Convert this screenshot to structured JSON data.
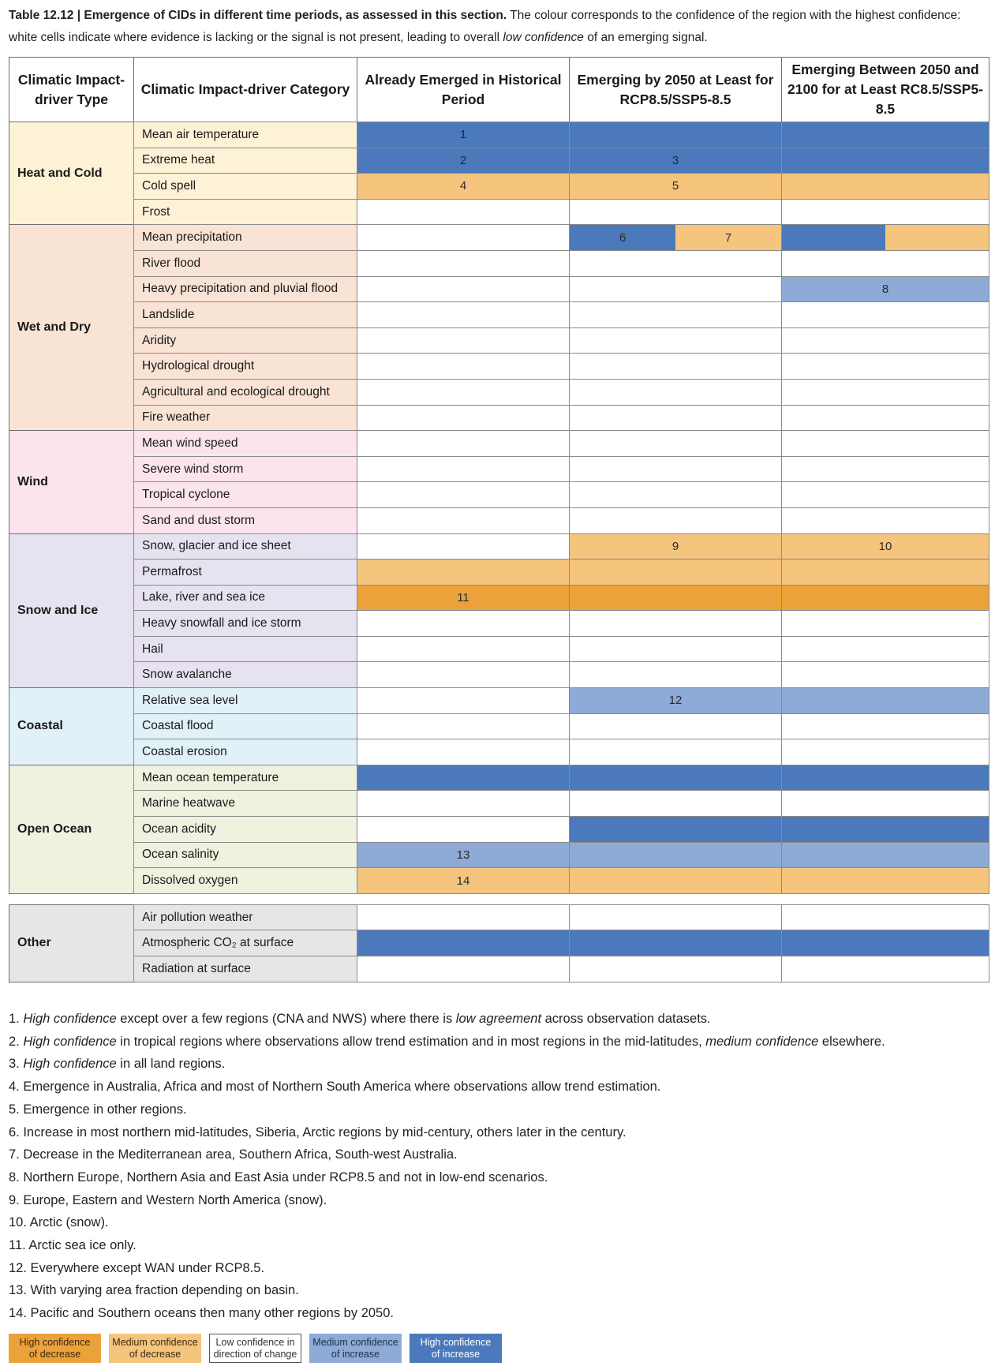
{
  "caption": {
    "label": "Table 12.12 | Emergence of CIDs in different time periods, as assessed in this section.",
    "text_before_italic": " The colour corresponds to the confidence of the region with the highest confidence: white cells indicate where evidence is lacking or the signal is not present, leading to overall ",
    "italic": "low confidence",
    "text_after_italic": " of an emerging signal."
  },
  "colors": {
    "high_decrease": "#eba23b",
    "medium_decrease": "#f5c47d",
    "low": "#ffffff",
    "medium_increase": "#8eaad6",
    "high_increase": "#4c79bb"
  },
  "headers": [
    "Climatic Impact-driver Type",
    "Climatic Impact-driver Category",
    "Already Emerged in Historical Period",
    "Emerging by 2050 at Least for RCP8.5/SSP5-8.5",
    "Emerging Between 2050 and 2100 for at Least RC8.5/SSP5-8.5"
  ],
  "groups": [
    {
      "type": "Heat and Cold",
      "bg": "#fdf1d6",
      "rows": [
        {
          "category": "Mean air temperature",
          "cells": [
            [
              [
                "high_increase",
                "1"
              ]
            ],
            [
              [
                "high_increase",
                ""
              ]
            ],
            [
              [
                "high_increase",
                ""
              ]
            ]
          ]
        },
        {
          "category": "Extreme heat",
          "cells": [
            [
              [
                "high_increase",
                "2"
              ]
            ],
            [
              [
                "high_increase",
                "3"
              ]
            ],
            [
              [
                "high_increase",
                ""
              ]
            ]
          ]
        },
        {
          "category": "Cold spell",
          "cells": [
            [
              [
                "medium_decrease",
                "4"
              ]
            ],
            [
              [
                "medium_decrease",
                "5"
              ]
            ],
            [
              [
                "medium_decrease",
                ""
              ]
            ]
          ]
        },
        {
          "category": "Frost",
          "cells": [
            [
              [
                "low",
                ""
              ]
            ],
            [
              [
                "low",
                ""
              ]
            ],
            [
              [
                "low",
                ""
              ]
            ]
          ]
        }
      ]
    },
    {
      "type": "Wet and Dry",
      "bg": "#f9e3d4",
      "rows": [
        {
          "category": "Mean precipitation",
          "cells": [
            [
              [
                "low",
                ""
              ]
            ],
            [
              [
                "high_increase",
                "6"
              ],
              [
                "medium_decrease",
                "7"
              ]
            ],
            [
              [
                "high_increase",
                ""
              ],
              [
                "medium_decrease",
                ""
              ]
            ]
          ]
        },
        {
          "category": "River flood",
          "cells": [
            [
              [
                "low",
                ""
              ]
            ],
            [
              [
                "low",
                ""
              ]
            ],
            [
              [
                "low",
                ""
              ]
            ]
          ]
        },
        {
          "category": "Heavy precipitation and pluvial flood",
          "cells": [
            [
              [
                "low",
                ""
              ]
            ],
            [
              [
                "low",
                ""
              ]
            ],
            [
              [
                "medium_increase",
                "8"
              ]
            ]
          ]
        },
        {
          "category": "Landslide",
          "cells": [
            [
              [
                "low",
                ""
              ]
            ],
            [
              [
                "low",
                ""
              ]
            ],
            [
              [
                "low",
                ""
              ]
            ]
          ]
        },
        {
          "category": "Aridity",
          "cells": [
            [
              [
                "low",
                ""
              ]
            ],
            [
              [
                "low",
                ""
              ]
            ],
            [
              [
                "low",
                ""
              ]
            ]
          ]
        },
        {
          "category": "Hydrological drought",
          "cells": [
            [
              [
                "low",
                ""
              ]
            ],
            [
              [
                "low",
                ""
              ]
            ],
            [
              [
                "low",
                ""
              ]
            ]
          ]
        },
        {
          "category": "Agricultural and ecological drought",
          "cells": [
            [
              [
                "low",
                ""
              ]
            ],
            [
              [
                "low",
                ""
              ]
            ],
            [
              [
                "low",
                ""
              ]
            ]
          ]
        },
        {
          "category": "Fire weather",
          "cells": [
            [
              [
                "low",
                ""
              ]
            ],
            [
              [
                "low",
                ""
              ]
            ],
            [
              [
                "low",
                ""
              ]
            ]
          ]
        }
      ]
    },
    {
      "type": "Wind",
      "bg": "#fbe4ec",
      "rows": [
        {
          "category": "Mean wind speed",
          "cells": [
            [
              [
                "low",
                ""
              ]
            ],
            [
              [
                "low",
                ""
              ]
            ],
            [
              [
                "low",
                ""
              ]
            ]
          ]
        },
        {
          "category": "Severe wind storm",
          "cells": [
            [
              [
                "low",
                ""
              ]
            ],
            [
              [
                "low",
                ""
              ]
            ],
            [
              [
                "low",
                ""
              ]
            ]
          ]
        },
        {
          "category": "Tropical cyclone",
          "cells": [
            [
              [
                "low",
                ""
              ]
            ],
            [
              [
                "low",
                ""
              ]
            ],
            [
              [
                "low",
                ""
              ]
            ]
          ]
        },
        {
          "category": "Sand and dust storm",
          "cells": [
            [
              [
                "low",
                ""
              ]
            ],
            [
              [
                "low",
                ""
              ]
            ],
            [
              [
                "low",
                ""
              ]
            ]
          ]
        }
      ]
    },
    {
      "type": "Snow and Ice",
      "bg": "#e7e2ef",
      "rows": [
        {
          "category": "Snow, glacier and ice sheet",
          "cells": [
            [
              [
                "low",
                ""
              ]
            ],
            [
              [
                "medium_decrease",
                "9"
              ]
            ],
            [
              [
                "medium_decrease",
                "10"
              ]
            ]
          ]
        },
        {
          "category": "Permafrost",
          "cells": [
            [
              [
                "medium_decrease",
                ""
              ]
            ],
            [
              [
                "medium_decrease",
                ""
              ]
            ],
            [
              [
                "medium_decrease",
                ""
              ]
            ]
          ]
        },
        {
          "category": "Lake, river and sea ice",
          "cells": [
            [
              [
                "high_decrease",
                "11"
              ]
            ],
            [
              [
                "high_decrease",
                ""
              ]
            ],
            [
              [
                "high_decrease",
                ""
              ]
            ]
          ]
        },
        {
          "category": "Heavy snowfall and ice storm",
          "cells": [
            [
              [
                "low",
                ""
              ]
            ],
            [
              [
                "low",
                ""
              ]
            ],
            [
              [
                "low",
                ""
              ]
            ]
          ]
        },
        {
          "category": "Hail",
          "cells": [
            [
              [
                "low",
                ""
              ]
            ],
            [
              [
                "low",
                ""
              ]
            ],
            [
              [
                "low",
                ""
              ]
            ]
          ]
        },
        {
          "category": "Snow avalanche",
          "cells": [
            [
              [
                "low",
                ""
              ]
            ],
            [
              [
                "low",
                ""
              ]
            ],
            [
              [
                "low",
                ""
              ]
            ]
          ]
        }
      ]
    },
    {
      "type": "Coastal",
      "bg": "#e1f1f8",
      "rows": [
        {
          "category": "Relative sea level",
          "cells": [
            [
              [
                "low",
                ""
              ]
            ],
            [
              [
                "medium_increase",
                "12"
              ]
            ],
            [
              [
                "medium_increase",
                ""
              ]
            ]
          ]
        },
        {
          "category": "Coastal flood",
          "cells": [
            [
              [
                "low",
                ""
              ]
            ],
            [
              [
                "low",
                ""
              ]
            ],
            [
              [
                "low",
                ""
              ]
            ]
          ]
        },
        {
          "category": "Coastal erosion",
          "cells": [
            [
              [
                "low",
                ""
              ]
            ],
            [
              [
                "low",
                ""
              ]
            ],
            [
              [
                "low",
                ""
              ]
            ]
          ]
        }
      ]
    },
    {
      "type": "Open Ocean",
      "bg": "#eef3df",
      "rows": [
        {
          "category": "Mean ocean temperature",
          "cells": [
            [
              [
                "high_increase",
                ""
              ]
            ],
            [
              [
                "high_increase",
                ""
              ]
            ],
            [
              [
                "high_increase",
                ""
              ]
            ]
          ]
        },
        {
          "category": "Marine heatwave",
          "cells": [
            [
              [
                "low",
                ""
              ]
            ],
            [
              [
                "low",
                ""
              ]
            ],
            [
              [
                "low",
                ""
              ]
            ]
          ]
        },
        {
          "category": "Ocean acidity",
          "cells": [
            [
              [
                "low",
                ""
              ]
            ],
            [
              [
                "high_increase",
                ""
              ]
            ],
            [
              [
                "high_increase",
                ""
              ]
            ]
          ]
        },
        {
          "category": "Ocean salinity",
          "cells": [
            [
              [
                "medium_increase",
                "13"
              ]
            ],
            [
              [
                "medium_increase",
                ""
              ]
            ],
            [
              [
                "medium_increase",
                ""
              ]
            ]
          ]
        },
        {
          "category": "Dissolved oxygen",
          "cells": [
            [
              [
                "medium_decrease",
                "14"
              ]
            ],
            [
              [
                "medium_decrease",
                ""
              ]
            ],
            [
              [
                "medium_decrease",
                ""
              ]
            ]
          ]
        }
      ]
    },
    {
      "type": "Other",
      "bg": "#e6e6e6",
      "gap_before": true,
      "rows": [
        {
          "category": "Air pollution weather",
          "cells": [
            [
              [
                "low",
                ""
              ]
            ],
            [
              [
                "low",
                ""
              ]
            ],
            [
              [
                "low",
                ""
              ]
            ]
          ]
        },
        {
          "category": "Atmospheric CO₂ at surface",
          "cells": [
            [
              [
                "high_increase",
                ""
              ]
            ],
            [
              [
                "high_increase",
                ""
              ]
            ],
            [
              [
                "high_increase",
                ""
              ]
            ]
          ]
        },
        {
          "category": "Radiation at surface",
          "cells": [
            [
              [
                "low",
                ""
              ]
            ],
            [
              [
                "low",
                ""
              ]
            ],
            [
              [
                "low",
                ""
              ]
            ]
          ]
        }
      ]
    }
  ],
  "footnotes": [
    [
      [
        "t",
        "1. "
      ],
      [
        "i",
        "High confidence"
      ],
      [
        "t",
        " except over a few regions (CNA and NWS) where there is "
      ],
      [
        "i",
        "low agreement"
      ],
      [
        "t",
        " across observation datasets."
      ]
    ],
    [
      [
        "t",
        "2. "
      ],
      [
        "i",
        "High confidence"
      ],
      [
        "t",
        " in tropical regions where observations allow trend estimation and in most regions in the mid-latitudes, "
      ],
      [
        "i",
        "medium confidence"
      ],
      [
        "t",
        " elsewhere."
      ]
    ],
    [
      [
        "t",
        "3. "
      ],
      [
        "i",
        "High confidence"
      ],
      [
        "t",
        " in all land regions."
      ]
    ],
    [
      [
        "t",
        "4. Emergence in Australia, Africa and most of Northern South America where observations allow trend estimation."
      ]
    ],
    [
      [
        "t",
        "5. Emergence in other regions."
      ]
    ],
    [
      [
        "t",
        "6. Increase in most northern mid-latitudes, Siberia, Arctic regions by mid-century, others later in the century."
      ]
    ],
    [
      [
        "t",
        "7. Decrease in the Mediterranean area, Southern Africa, South-west Australia."
      ]
    ],
    [
      [
        "t",
        "8. Northern Europe, Northern Asia and East Asia under RCP8.5 and not in low-end scenarios."
      ]
    ],
    [
      [
        "t",
        "9. Europe, Eastern and Western North America (snow)."
      ]
    ],
    [
      [
        "t",
        "10. Arctic (snow)."
      ]
    ],
    [
      [
        "t",
        "11. Arctic sea ice only."
      ]
    ],
    [
      [
        "t",
        "12. Everywhere except WAN under RCP8.5."
      ]
    ],
    [
      [
        "t",
        "13. With varying area fraction depending on basin."
      ]
    ],
    [
      [
        "t",
        "14. Pacific and Southern oceans then many other regions by 2050."
      ]
    ]
  ],
  "legend": [
    {
      "key": "high_decrease",
      "line1": "High confidence",
      "line2": "of decrease",
      "text_color": "#3a2a10"
    },
    {
      "key": "medium_decrease",
      "line1": "Medium confidence",
      "line2": "of decrease",
      "text_color": "#3a2a10"
    },
    {
      "key": "low",
      "line1": "Low confidence in",
      "line2": "direction of change",
      "text_color": "#333333"
    },
    {
      "key": "medium_increase",
      "line1": "Medium confidence",
      "line2": "of increase",
      "text_color": "#1f2f4a"
    },
    {
      "key": "high_increase",
      "line1": "High confidence",
      "line2": "of increase",
      "text_color": "#ffffff"
    }
  ]
}
